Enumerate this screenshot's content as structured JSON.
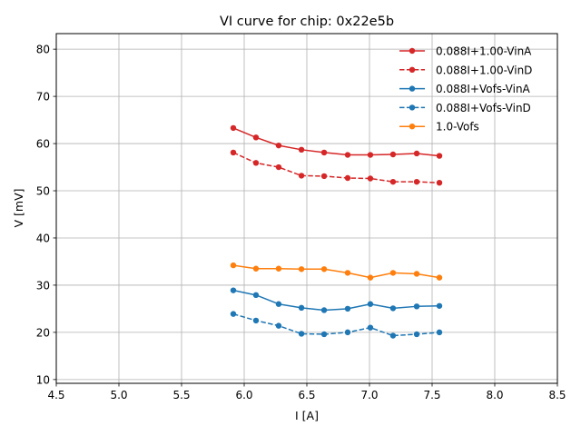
{
  "chart_data": {
    "type": "line",
    "title": "VI curve for chip: 0x22e5b",
    "xlabel": "I [A]",
    "ylabel": "V [mV]",
    "xlim": [
      4.5,
      8.5
    ],
    "ylim": [
      9.2,
      83.3
    ],
    "xticks": [
      4.5,
      5.0,
      5.5,
      6.0,
      6.5,
      7.0,
      7.5,
      8.0,
      8.5
    ],
    "xtick_labels": [
      "4.5",
      "5.0",
      "5.5",
      "6.0",
      "6.5",
      "7.0",
      "7.5",
      "8.0",
      "8.5"
    ],
    "yticks": [
      10,
      20,
      30,
      40,
      50,
      60,
      70,
      80
    ],
    "ytick_labels": [
      "10",
      "20",
      "30",
      "40",
      "50",
      "60",
      "70",
      "80"
    ],
    "grid": true,
    "legend_position": "top-right",
    "x": [
      5.913,
      6.094,
      6.275,
      6.457,
      6.638,
      6.826,
      7.007,
      7.188,
      7.377,
      7.558
    ],
    "series": [
      {
        "name": "0.088I+1.00-VinA",
        "color": "#d62728",
        "dashed": false,
        "values": [
          63.3,
          61.3,
          59.6,
          58.7,
          58.1,
          57.6,
          57.6,
          57.7,
          57.9,
          57.4
        ]
      },
      {
        "name": "0.088I+1.00-VinD",
        "color": "#d62728",
        "dashed": true,
        "values": [
          58.1,
          55.9,
          55.0,
          53.2,
          53.1,
          52.7,
          52.6,
          51.9,
          51.9,
          51.7
        ]
      },
      {
        "name": "0.088I+Vofs-VinA",
        "color": "#1f77b4",
        "dashed": false,
        "values": [
          28.9,
          27.9,
          26.0,
          25.2,
          24.7,
          25.0,
          26.0,
          25.1,
          25.5,
          25.6
        ]
      },
      {
        "name": "0.088I+Vofs-VinD",
        "color": "#1f77b4",
        "dashed": true,
        "values": [
          23.9,
          22.5,
          21.4,
          19.7,
          19.6,
          20.0,
          21.0,
          19.3,
          19.6,
          20.0
        ]
      },
      {
        "name": "1.0-Vofs",
        "color": "#ff7f0e",
        "dashed": false,
        "values": [
          34.2,
          33.5,
          33.5,
          33.4,
          33.4,
          32.6,
          31.6,
          32.6,
          32.4,
          31.6
        ]
      }
    ]
  }
}
